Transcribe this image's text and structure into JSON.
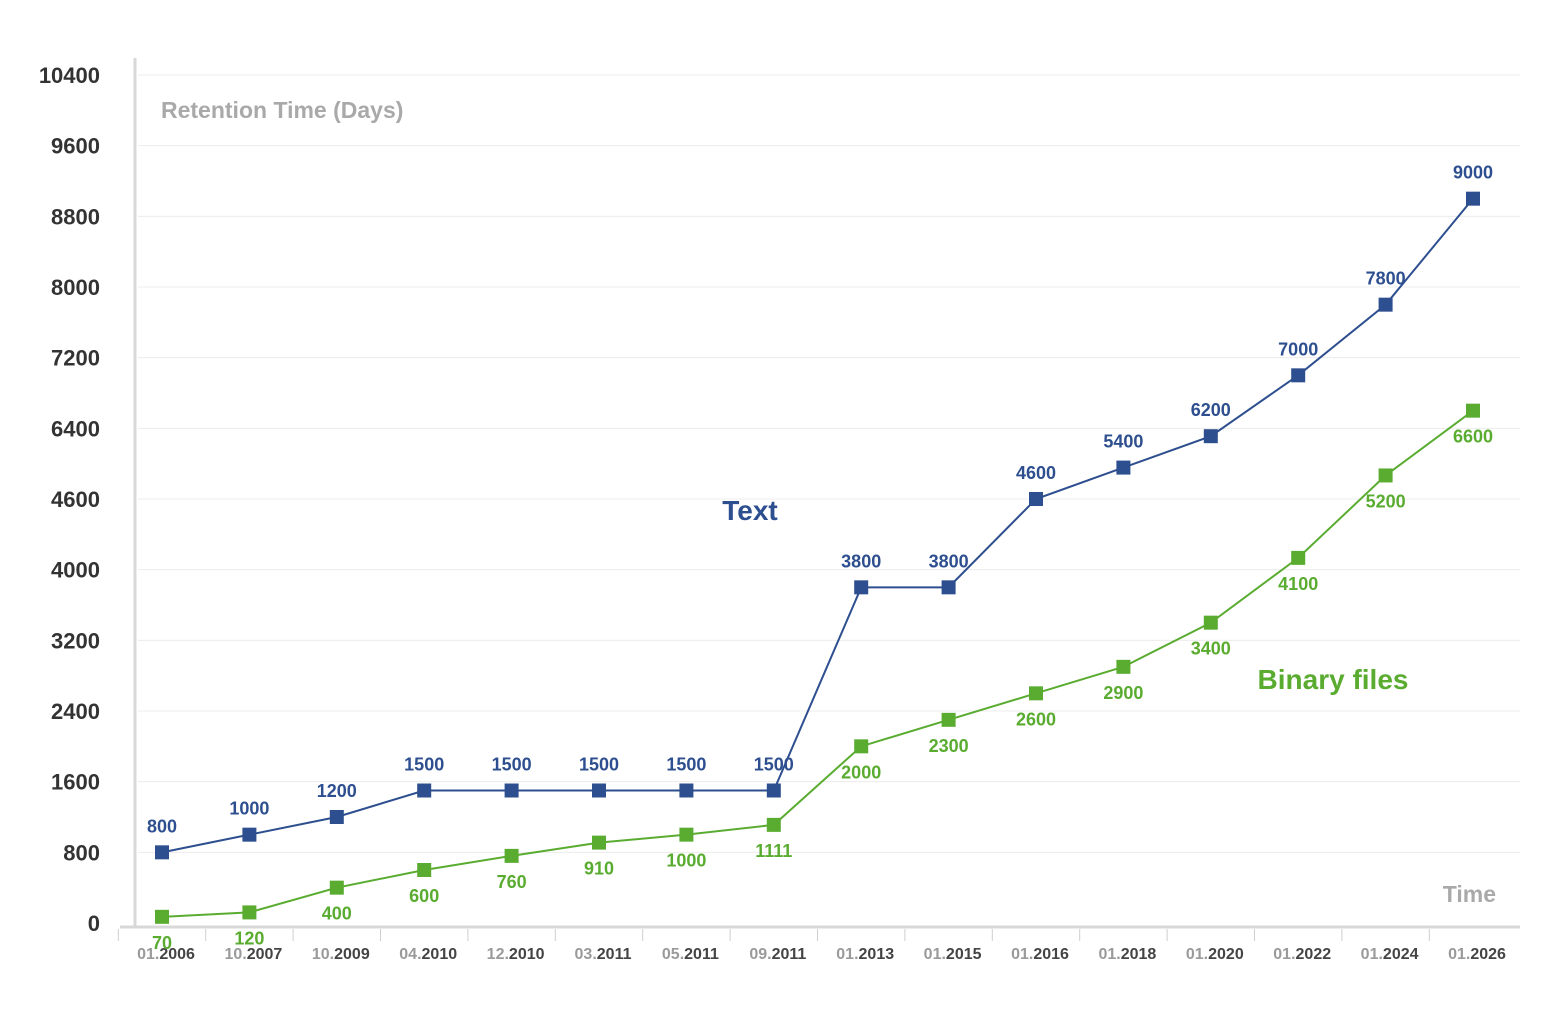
{
  "chart_data": {
    "type": "line",
    "title": "",
    "ylabel": "Retention Time (Days)",
    "xlabel": "Time",
    "categories": [
      "01.2006",
      "10.2007",
      "10.2009",
      "04.2010",
      "12.2010",
      "03.2011",
      "05.2011",
      "09.2011",
      "01.2013",
      "01.2015",
      "01.2016",
      "01.2018",
      "01.2020",
      "01.2022",
      "01.2024",
      "01.2026"
    ],
    "y_ticks": [
      0,
      800,
      1600,
      2400,
      3200,
      4000,
      4600,
      6400,
      7200,
      8000,
      8800,
      9600,
      10400
    ],
    "ylim": [
      0,
      10400
    ],
    "grid": true,
    "series": [
      {
        "name": "Text",
        "color": "#2e4f8f",
        "values": [
          800,
          1000,
          1200,
          1500,
          1500,
          1500,
          1500,
          1500,
          3800,
          3800,
          4600,
          5400,
          6200,
          7000,
          7800,
          9000
        ],
        "value_labels": [
          "800",
          "1000",
          "1200",
          "1500",
          "1500",
          "1500",
          "1500",
          "1500",
          "3800",
          "3800",
          "4600",
          "5400",
          "6200",
          "7000",
          "7800",
          "9000"
        ]
      },
      {
        "name": "Binary files",
        "color": "#5aac31",
        "values": [
          70,
          120,
          400,
          600,
          760,
          910,
          1000,
          1111,
          2000,
          2300,
          2600,
          2900,
          3400,
          4100,
          5200,
          6600
        ],
        "value_labels": [
          "70",
          "120",
          "400",
          "600",
          "760",
          "910",
          "1000",
          "1111",
          "2000",
          "2300",
          "2600",
          "2900",
          "3400",
          "4100",
          "5200",
          "6600"
        ]
      }
    ]
  }
}
